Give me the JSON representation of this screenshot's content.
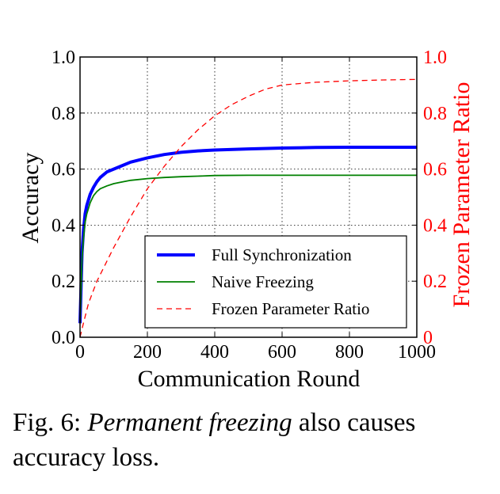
{
  "chart_data": {
    "type": "line",
    "xlabel": "Communication Round",
    "ylabel": "Accuracy",
    "y2label": "Frozen Parameter Ratio",
    "xlim": [
      0,
      1000
    ],
    "ylim": [
      0,
      1.0
    ],
    "y2lim": [
      0,
      1.0
    ],
    "x_ticks": [
      "0",
      "200",
      "400",
      "600",
      "800",
      "1000"
    ],
    "y_ticks": [
      "0.0",
      "0.2",
      "0.4",
      "0.6",
      "0.8",
      "1.0"
    ],
    "y2_ticks": [
      "0",
      "0.2",
      "0.4",
      "0.6",
      "0.8",
      "1.0"
    ],
    "grid": true,
    "legend_position": "lower-right",
    "colors": {
      "full": "#0000ff",
      "naive": "#008000",
      "frozen": "#ff0000",
      "right_axis": "#ff0000"
    },
    "series": [
      {
        "name": "Full Synchronization",
        "axis": "left",
        "style": "solid-thick",
        "x": [
          0,
          3,
          6,
          10,
          15,
          20,
          30,
          40,
          50,
          60,
          80,
          100,
          120,
          150,
          200,
          250,
          300,
          350,
          400,
          500,
          600,
          700,
          800,
          900,
          1000
        ],
        "y": [
          0.05,
          0.18,
          0.3,
          0.38,
          0.44,
          0.47,
          0.51,
          0.535,
          0.555,
          0.57,
          0.59,
          0.6,
          0.61,
          0.625,
          0.64,
          0.652,
          0.66,
          0.665,
          0.668,
          0.672,
          0.675,
          0.677,
          0.678,
          0.678,
          0.678
        ]
      },
      {
        "name": "Naive Freezing",
        "axis": "left",
        "style": "solid",
        "x": [
          0,
          3,
          6,
          10,
          15,
          20,
          30,
          40,
          50,
          60,
          80,
          100,
          120,
          150,
          200,
          250,
          300,
          350,
          400,
          500,
          600,
          700,
          800,
          900,
          1000
        ],
        "y": [
          0.05,
          0.17,
          0.28,
          0.35,
          0.41,
          0.44,
          0.48,
          0.505,
          0.52,
          0.53,
          0.54,
          0.548,
          0.553,
          0.56,
          0.566,
          0.57,
          0.573,
          0.575,
          0.577,
          0.578,
          0.578,
          0.578,
          0.578,
          0.578,
          0.578
        ]
      },
      {
        "name": "Frozen Parameter Ratio",
        "axis": "right",
        "style": "dashed",
        "x": [
          0,
          10,
          25,
          50,
          100,
          150,
          200,
          250,
          300,
          350,
          400,
          450,
          500,
          550,
          600,
          650,
          700,
          800,
          900,
          1000
        ],
        "y": [
          0.0,
          0.05,
          0.12,
          0.2,
          0.32,
          0.43,
          0.53,
          0.61,
          0.68,
          0.74,
          0.79,
          0.83,
          0.86,
          0.885,
          0.9,
          0.905,
          0.91,
          0.915,
          0.918,
          0.92
        ]
      }
    ]
  },
  "caption": {
    "prefix": "Fig. 6: ",
    "emphasis": "Permanent freezing",
    "suffix": " also causes accuracy loss."
  }
}
